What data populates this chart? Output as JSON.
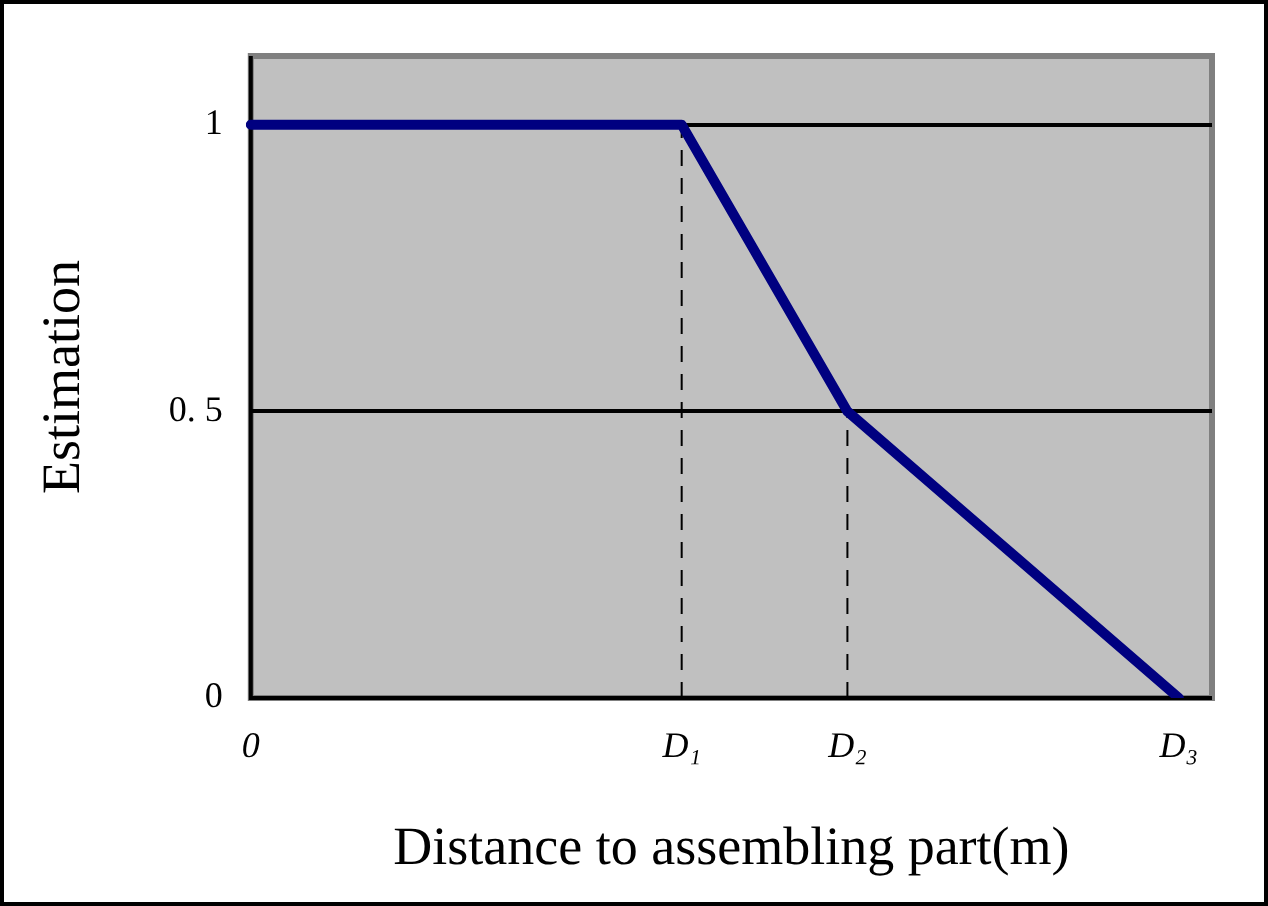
{
  "chart_data": {
    "type": "line",
    "xlabel": "Distance to assembling part(m)",
    "ylabel": "Estimation",
    "categories": [
      "0",
      null,
      null,
      null,
      null,
      null,
      null,
      null,
      null,
      null,
      null,
      null,
      null,
      "D₁",
      null,
      null,
      null,
      null,
      "D₂",
      null,
      null,
      null,
      null,
      null,
      null,
      null,
      null,
      null,
      "D₃",
      null
    ],
    "series": [
      {
        "color": "#000080",
        "values": [
          1,
          null,
          null,
          null,
          null,
          null,
          null,
          null,
          null,
          null,
          null,
          null,
          null,
          1,
          null,
          null,
          null,
          null,
          0.5,
          null,
          null,
          null,
          null,
          null,
          null,
          null,
          null,
          null,
          0,
          null
        ]
      }
    ],
    "ylim": [
      0,
      1.12
    ],
    "yticks": [
      0,
      {
        "value": 0.5,
        "label": "0. 5"
      },
      1
    ],
    "ref_lines": [
      {
        "axis": "x",
        "value": "D₁",
        "color": "#000000",
        "line_style": "dashed"
      },
      {
        "axis": "x",
        "value": "D₂",
        "color": "#000000",
        "line_style": "dashed"
      }
    ],
    "grid": "y",
    "legend": false,
    "marker": "none",
    "line_style": "solid"
  }
}
